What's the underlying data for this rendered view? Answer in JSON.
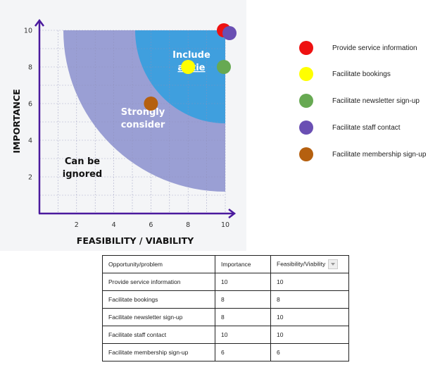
{
  "chart_data": {
    "type": "scatter",
    "xlabel": "FEASIBILITY / VIABILITY",
    "ylabel": "IMPORTANCE",
    "xlim": [
      0,
      10
    ],
    "ylim": [
      0,
      10
    ],
    "x_ticks": [
      "2",
      "4",
      "6",
      "8",
      "10"
    ],
    "y_ticks": [
      "2",
      "4",
      "6",
      "8",
      "10"
    ],
    "grid": true,
    "regions": [
      {
        "label_lines": [
          "Include",
          "at tie"
        ],
        "color": "#3f9fde"
      },
      {
        "label_lines": [
          "Strongly",
          "consider"
        ],
        "color": "#9a9fd4"
      },
      {
        "label_lines": [
          "Can be",
          "ignored"
        ],
        "color": "#f4f5f7"
      }
    ],
    "legend_position": "right",
    "series": [
      {
        "name": "Provide service information",
        "x": 10,
        "y": 10,
        "color": "#ee1111"
      },
      {
        "name": "Facilitate bookings",
        "x": 8,
        "y": 8,
        "color": "#ffff00"
      },
      {
        "name": "Facilitate newsletter sign-up",
        "x": 10,
        "y": 8,
        "color": "#67a952"
      },
      {
        "name": "Facilitate staff contact",
        "x": 10,
        "y": 10,
        "color": "#6a4fb3"
      },
      {
        "name": "Facilitate membership sign-up",
        "x": 6,
        "y": 6,
        "color": "#b5600f"
      }
    ]
  },
  "table": {
    "headers": [
      "Opportunity/problem",
      "Importance",
      "Feasibility/Viability"
    ],
    "rows": [
      [
        "Provide service information",
        "10",
        "10"
      ],
      [
        "Facilitate bookings",
        "8",
        "8"
      ],
      [
        "Facilitate newsletter sign-up",
        "8",
        "10"
      ],
      [
        "Facilitate staff contact",
        "10",
        "10"
      ],
      [
        "Facilitate membership sign-up",
        "6",
        "6"
      ]
    ]
  }
}
